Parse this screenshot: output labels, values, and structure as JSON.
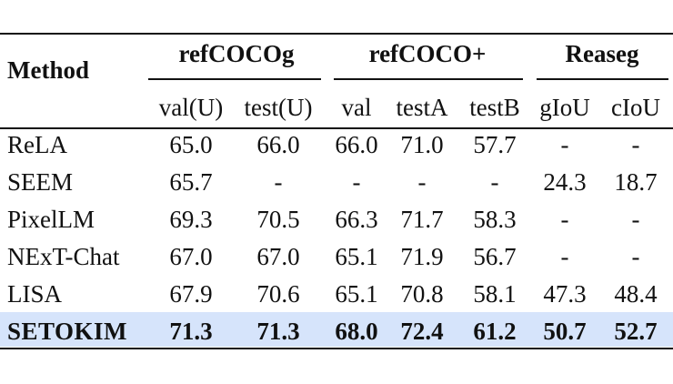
{
  "table": {
    "method_header": "Method",
    "groups": [
      {
        "label": "refCOCOg",
        "subs": [
          "val(U)",
          "test(U)"
        ]
      },
      {
        "label": "refCOCO+",
        "subs": [
          "val",
          "testA",
          "testB"
        ]
      },
      {
        "label": "Reaseg",
        "subs": [
          "gIoU",
          "cIoU"
        ]
      }
    ],
    "rows": [
      {
        "method": "ReLA",
        "values": [
          "65.0",
          "66.0",
          "66.0",
          "71.0",
          "57.7",
          "-",
          "-"
        ],
        "highlight": false
      },
      {
        "method": "SEEM",
        "values": [
          "65.7",
          "-",
          "-",
          "-",
          "-",
          "24.3",
          "18.7"
        ],
        "highlight": false
      },
      {
        "method": "PixelLM",
        "values": [
          "69.3",
          "70.5",
          "66.3",
          "71.7",
          "58.3",
          "-",
          "-"
        ],
        "highlight": false
      },
      {
        "method": "NExT-Chat",
        "values": [
          "67.0",
          "67.0",
          "65.1",
          "71.9",
          "56.7",
          "-",
          "-"
        ],
        "highlight": false
      },
      {
        "method": "LISA",
        "values": [
          "67.9",
          "70.6",
          "65.1",
          "70.8",
          "58.1",
          "47.3",
          "48.4"
        ],
        "highlight": false
      },
      {
        "method": "SETOKIM",
        "values": [
          "71.3",
          "71.3",
          "68.0",
          "72.4",
          "61.2",
          "50.7",
          "52.7"
        ],
        "highlight": true
      }
    ],
    "highlight_color": "#d6e4fb"
  }
}
